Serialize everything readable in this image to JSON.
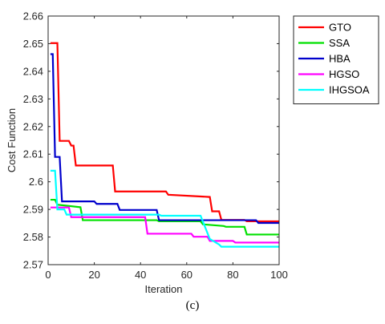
{
  "caption": "(c)",
  "chart_data": {
    "type": "line",
    "xlabel": "Iteration",
    "ylabel": "Cost Function",
    "xlim": [
      0,
      100
    ],
    "ylim": [
      2.57,
      2.66
    ],
    "xticks": [
      0,
      20,
      40,
      60,
      80,
      100
    ],
    "yticks": [
      2.57,
      2.58,
      2.59,
      2.6,
      2.61,
      2.62,
      2.63,
      2.64,
      2.65,
      2.66
    ],
    "ytick_labels": [
      "2.57",
      "2.58",
      "2.59",
      "2.6",
      "2.61",
      "2.62",
      "2.63",
      "2.64",
      "2.65",
      "2.66"
    ],
    "grid": false,
    "legend_position": "top-right",
    "series": [
      {
        "name": "GTO",
        "color": "#ff0000",
        "points": [
          [
            1,
            2.6502
          ],
          [
            4,
            2.6502
          ],
          [
            5,
            2.6148
          ],
          [
            9,
            2.6148
          ],
          [
            10,
            2.6131
          ],
          [
            11,
            2.6131
          ],
          [
            12,
            2.6059
          ],
          [
            28,
            2.6059
          ],
          [
            29,
            2.5965
          ],
          [
            51,
            2.5965
          ],
          [
            52,
            2.5953
          ],
          [
            70,
            2.5945
          ],
          [
            71,
            2.5893
          ],
          [
            74,
            2.5893
          ],
          [
            75,
            2.5862
          ],
          [
            85,
            2.5862
          ],
          [
            86,
            2.5857
          ],
          [
            100,
            2.5857
          ]
        ]
      },
      {
        "name": "SSA",
        "color": "#00e000",
        "points": [
          [
            1,
            2.5935
          ],
          [
            3,
            2.5935
          ],
          [
            4,
            2.5917
          ],
          [
            14,
            2.5908
          ],
          [
            15,
            2.5861
          ],
          [
            47,
            2.5861
          ],
          [
            48,
            2.5857
          ],
          [
            66,
            2.5857
          ],
          [
            67,
            2.5846
          ],
          [
            76,
            2.584
          ],
          [
            77,
            2.5837
          ],
          [
            85,
            2.5837
          ],
          [
            86,
            2.5809
          ],
          [
            100,
            2.5809
          ]
        ]
      },
      {
        "name": "HBA",
        "color": "#0000cc",
        "points": [
          [
            1,
            2.6462
          ],
          [
            2,
            2.6462
          ],
          [
            3,
            2.609
          ],
          [
            5,
            2.609
          ],
          [
            6,
            2.5929
          ],
          [
            20,
            2.5929
          ],
          [
            21,
            2.592
          ],
          [
            30,
            2.592
          ],
          [
            31,
            2.5898
          ],
          [
            47,
            2.5898
          ],
          [
            48,
            2.5861
          ],
          [
            90,
            2.5861
          ],
          [
            91,
            2.5851
          ],
          [
            100,
            2.5851
          ]
        ]
      },
      {
        "name": "HGSO",
        "color": "#ff00ff",
        "points": [
          [
            1,
            2.5907
          ],
          [
            9,
            2.5907
          ],
          [
            10,
            2.5872
          ],
          [
            42,
            2.5872
          ],
          [
            43,
            2.5812
          ],
          [
            62,
            2.5812
          ],
          [
            63,
            2.5801
          ],
          [
            69,
            2.5801
          ],
          [
            70,
            2.5786
          ],
          [
            80,
            2.5786
          ],
          [
            81,
            2.578
          ],
          [
            100,
            2.578
          ]
        ]
      },
      {
        "name": "IHGSOA",
        "color": "#00ffff",
        "points": [
          [
            1,
            2.604
          ],
          [
            3,
            2.604
          ],
          [
            4,
            2.59
          ],
          [
            7,
            2.59
          ],
          [
            8,
            2.5881
          ],
          [
            48,
            2.5881
          ],
          [
            49,
            2.5877
          ],
          [
            66,
            2.5877
          ],
          [
            70,
            2.5793
          ],
          [
            74,
            2.5773
          ],
          [
            75,
            2.5765
          ],
          [
            100,
            2.5765
          ]
        ]
      }
    ]
  }
}
